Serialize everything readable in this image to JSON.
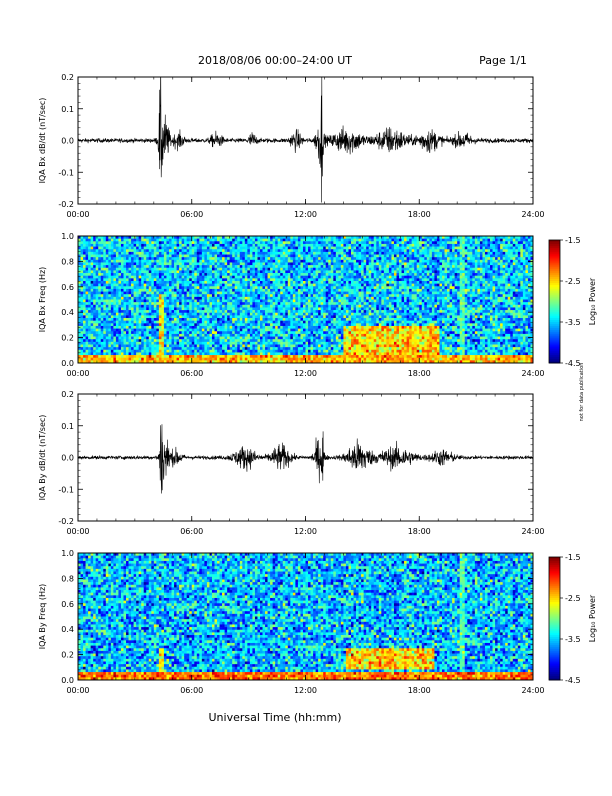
{
  "header": {
    "title": "2018/08/06  00:00–24:00 UT",
    "page_label": "Page 1/1"
  },
  "side_note": "not for data publication",
  "xlabel": "Universal Time (hh:mm)",
  "chart_data": [
    {
      "type": "line",
      "ylabel": "IQA Bx dB/dt (nT/sec)",
      "x_ticks": [
        "00:00",
        "06:00",
        "12:00",
        "18:00",
        "24:00"
      ],
      "xlim_hours": [
        0,
        24
      ],
      "ylim": [
        -0.2,
        0.2
      ],
      "y_ticks": [
        "0.2",
        "0.1",
        "0.0",
        "-0.1",
        "-0.2"
      ],
      "series_color": "#000000",
      "noise_amplitude": 0.006,
      "bursts": [
        {
          "t": 4.35,
          "width": 0.08,
          "amp": 0.15
        },
        {
          "t": 4.55,
          "width": 0.25,
          "amp": 0.07
        },
        {
          "t": 5.3,
          "width": 0.3,
          "amp": 0.02
        },
        {
          "t": 7.3,
          "width": 0.3,
          "amp": 0.02
        },
        {
          "t": 9.2,
          "width": 0.2,
          "amp": 0.02
        },
        {
          "t": 12.85,
          "width": 0.04,
          "amp": 0.17
        },
        {
          "t": 12.75,
          "width": 0.2,
          "amp": 0.06
        },
        {
          "t": 11.5,
          "width": 0.3,
          "amp": 0.025
        },
        {
          "t": 14.2,
          "width": 0.8,
          "amp": 0.035
        },
        {
          "t": 16.5,
          "width": 0.8,
          "amp": 0.035
        },
        {
          "t": 18.5,
          "width": 0.6,
          "amp": 0.03
        },
        {
          "t": 20.3,
          "width": 0.5,
          "amp": 0.02
        }
      ]
    },
    {
      "type": "heatmap",
      "ylabel": "IQA Bx Freq (Hz)",
      "x_ticks": [
        "00:00",
        "06:00",
        "12:00",
        "18:00",
        "24:00"
      ],
      "xlim_hours": [
        0,
        24
      ],
      "ylim": [
        0.0,
        1.0
      ],
      "y_ticks": [
        "1.0",
        "0.8",
        "0.6",
        "0.4",
        "0.2",
        "0.0"
      ],
      "colorbar": {
        "label": "Log₁₀ Power",
        "range": [
          -4.5,
          -1.5
        ],
        "ticks": [
          "-1.5",
          "-2.5",
          "-3.5",
          "-4.5"
        ]
      },
      "base_level": -3.5,
      "features": [
        {
          "kind": "column",
          "t": 4.35,
          "level": -2.6,
          "fmax": 0.55
        },
        {
          "kind": "column",
          "t": 20.25,
          "level": -3.2,
          "fmax": 1.0
        },
        {
          "kind": "band",
          "t0": 14.0,
          "t1": 19.0,
          "f0": 0.05,
          "f1": 0.3,
          "level": -2.5
        },
        {
          "kind": "floor",
          "t0": 0,
          "t1": 24,
          "f1": 0.04,
          "level": -2.4
        }
      ]
    },
    {
      "type": "line",
      "ylabel": "IQA By dB/dt (nT/sec)",
      "x_ticks": [
        "00:00",
        "06:00",
        "12:00",
        "18:00",
        "24:00"
      ],
      "xlim_hours": [
        0,
        24
      ],
      "ylim": [
        -0.2,
        0.2
      ],
      "y_ticks": [
        "0.2",
        "0.1",
        "0.0",
        "-0.1",
        "-0.2"
      ],
      "series_color": "#000000",
      "noise_amplitude": 0.005,
      "bursts": [
        {
          "t": 4.4,
          "width": 0.08,
          "amp": 0.16
        },
        {
          "t": 4.6,
          "width": 0.25,
          "amp": 0.06
        },
        {
          "t": 5.2,
          "width": 0.3,
          "amp": 0.02
        },
        {
          "t": 8.8,
          "width": 0.6,
          "amp": 0.03
        },
        {
          "t": 10.7,
          "width": 0.5,
          "amp": 0.035
        },
        {
          "t": 12.9,
          "width": 0.03,
          "amp": 0.2
        },
        {
          "t": 12.7,
          "width": 0.25,
          "amp": 0.05
        },
        {
          "t": 14.8,
          "width": 0.6,
          "amp": 0.045
        },
        {
          "t": 16.8,
          "width": 0.9,
          "amp": 0.03
        },
        {
          "t": 19.2,
          "width": 0.6,
          "amp": 0.02
        }
      ]
    },
    {
      "type": "heatmap",
      "ylabel": "IQA By Freq (Hz)",
      "x_ticks": [
        "00:00",
        "06:00",
        "12:00",
        "18:00",
        "24:00"
      ],
      "xlim_hours": [
        0,
        24
      ],
      "ylim": [
        0.0,
        1.0
      ],
      "y_ticks": [
        "1.0",
        "0.8",
        "0.6",
        "0.4",
        "0.2",
        "0.0"
      ],
      "colorbar": {
        "label": "Log₁₀ Power",
        "range": [
          -4.5,
          -1.5
        ],
        "ticks": [
          "-1.5",
          "-2.5",
          "-3.5",
          "-4.5"
        ]
      },
      "base_level": -3.55,
      "features": [
        {
          "kind": "column",
          "t": 4.35,
          "level": -2.7,
          "fmax": 0.25
        },
        {
          "kind": "column",
          "t": 20.25,
          "level": -3.2,
          "fmax": 1.0
        },
        {
          "kind": "band",
          "t0": 14.2,
          "t1": 18.8,
          "f0": 0.08,
          "f1": 0.25,
          "level": -2.5
        },
        {
          "kind": "floor",
          "t0": 0,
          "t1": 24,
          "f1": 0.03,
          "level": -2.2
        }
      ]
    }
  ]
}
